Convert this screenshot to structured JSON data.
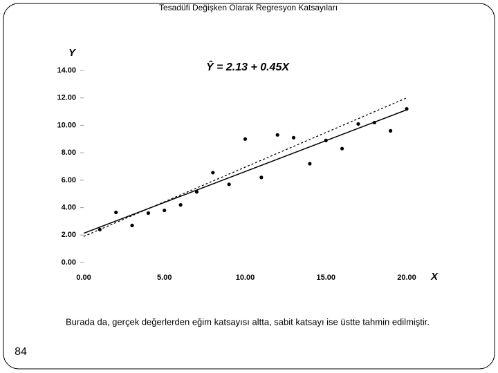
{
  "title": "Tesadüfi Değişken Olarak Regresyon Katsayıları",
  "caption": "Burada da, gerçek değerlerden eğim katsayısı altta, sabit katsayı ise üstte tahmin edilmiştir.",
  "page_number": "84",
  "chart_data": {
    "type": "scatter",
    "equation": "Ŷ = 2.13 + 0.45X",
    "x_label": "X",
    "y_label": "Y",
    "x": [
      1,
      2,
      3,
      4,
      5,
      6,
      7,
      8,
      9,
      10,
      11,
      12,
      13,
      14,
      15,
      16,
      17,
      18,
      19,
      20
    ],
    "values": [
      2.4,
      3.65,
      2.7,
      3.6,
      3.8,
      4.2,
      5.15,
      6.55,
      5.7,
      9.0,
      6.2,
      9.3,
      9.1,
      7.2,
      8.9,
      8.3,
      10.1,
      10.2,
      9.6,
      11.2
    ],
    "color": "#000000",
    "lines": [
      {
        "style": "solid",
        "x": [
          0,
          20
        ],
        "values": [
          2.13,
          11.13
        ]
      },
      {
        "style": "dotted",
        "x": [
          0,
          20
        ],
        "values": [
          1.9,
          12.0
        ]
      }
    ],
    "xlim": [
      0,
      20
    ],
    "ylim": [
      0,
      14
    ],
    "xticks": [
      {
        "value": 0,
        "label": "0.00"
      },
      {
        "value": 5,
        "label": "5.00"
      },
      {
        "value": 10,
        "label": "10.00"
      },
      {
        "value": 15,
        "label": "15.00"
      },
      {
        "value": 20,
        "label": "20.00"
      }
    ],
    "yticks": [
      {
        "value": 0,
        "label": "0.00"
      },
      {
        "value": 2,
        "label": "2.00"
      },
      {
        "value": 4,
        "label": "4.00"
      },
      {
        "value": 6,
        "label": "6.00"
      },
      {
        "value": 8,
        "label": "8.00"
      },
      {
        "value": 10,
        "label": "10.00"
      },
      {
        "value": 12,
        "label": "12.00"
      },
      {
        "value": 14,
        "label": "14.00"
      }
    ]
  }
}
